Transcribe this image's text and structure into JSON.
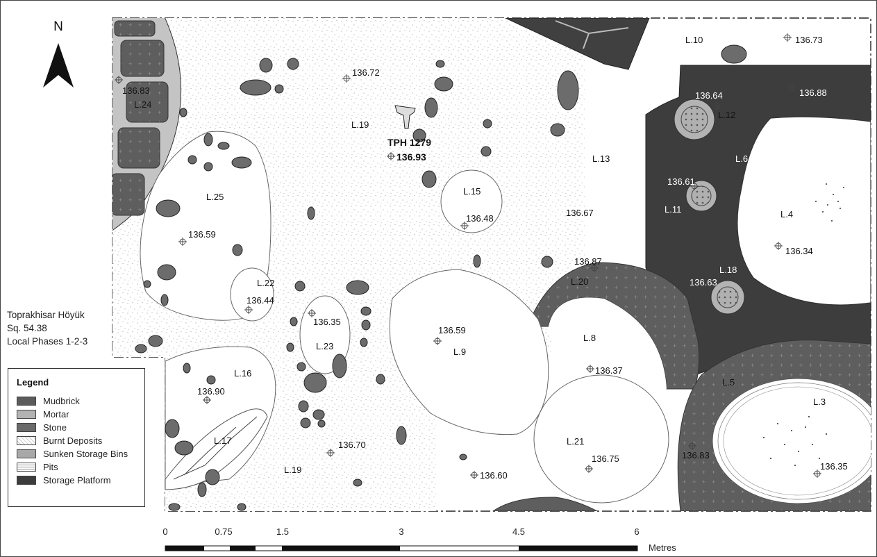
{
  "north_arrow": {
    "label": "N"
  },
  "site_info": {
    "line1": "Toprakhisar Höyük",
    "line2": "Sq. 54.38",
    "line3": "Local Phases 1-2-3"
  },
  "find": {
    "label": "TPH 1279",
    "elevation": "136.93"
  },
  "loci": [
    "L.10",
    "L.24",
    "L.12",
    "L.19",
    "L.6",
    "L.13",
    "L.15",
    "L.25",
    "L.11",
    "L.4",
    "L.22",
    "L.20",
    "L.18",
    "L.23",
    "L.9",
    "L.8",
    "L.16",
    "L.5",
    "L.3",
    "L.17",
    "L.21",
    "L.19"
  ],
  "elevations": [
    "136.73",
    "136.72",
    "136.83",
    "136.64",
    "136.88",
    "136.61",
    "136.48",
    "136.67",
    "136.59",
    "136.34",
    "136.87",
    "136.63",
    "136.44",
    "136.35",
    "136.59",
    "136.37",
    "136.90",
    "136.70",
    "136.60",
    "136.75",
    "136.83",
    "136.35"
  ],
  "legend": {
    "title": "Legend",
    "items": [
      {
        "label": "Mudbrick",
        "color": "#5b5b5b"
      },
      {
        "label": "Mortar",
        "color": "#b3b3b3"
      },
      {
        "label": "Stone",
        "color": "#6a6a6a"
      },
      {
        "label": "Burnt Deposits",
        "color": "#ffffff"
      },
      {
        "label": "Sunken Storage Bins",
        "color": "#a8a8a8"
      },
      {
        "label": "Pits",
        "color": "#ffffff"
      },
      {
        "label": "Storage Platform",
        "color": "#3c3c3c"
      }
    ]
  },
  "scale_bar": {
    "ticks": [
      "0",
      "0.75",
      "1.5",
      "3",
      "4.5",
      "6"
    ],
    "unit": "Metres"
  }
}
